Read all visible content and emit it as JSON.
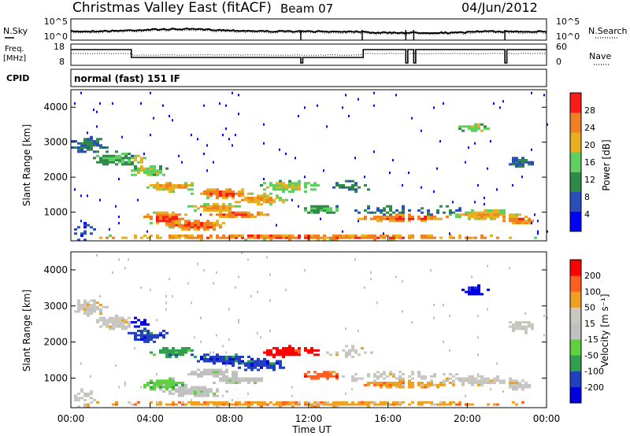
{
  "header": {
    "title": "Christmas Valley East (fitACF)",
    "beam": "Beam 07",
    "date": "04/Jun/2012"
  },
  "colors": {
    "sky_line": "#000000",
    "freq_line": "#000000"
  },
  "nsky_panel": {
    "left_label": "N.Sky",
    "right_label": "N.Search",
    "left_ticks": [
      "10^5",
      "10^0"
    ],
    "right_ticks": [
      "10^5",
      "10^0"
    ]
  },
  "freq_panel": {
    "left_label_1": "Freq.",
    "left_label_2": "[MHz]",
    "right_label": "Nave",
    "left_ticks": [
      "18",
      "8"
    ],
    "right_ticks": [
      "60",
      "0"
    ]
  },
  "cpid_panel": {
    "label": "CPID",
    "mode": "normal (fast) 151 IF"
  },
  "chart_data": [
    {
      "type": "heatmap",
      "quantity": "power",
      "ylabel": "Slant Range [km]",
      "ylim": [
        180,
        4500
      ],
      "y_ticks": [
        1000,
        2000,
        3000,
        4000
      ],
      "xlim_hours": [
        0,
        24
      ],
      "colorbar_label": "Power [dB]",
      "colorbar_ticks": [
        "28",
        "24",
        "20",
        "16",
        "12",
        "8",
        "4"
      ],
      "colorbar_colors": [
        "#0000ff",
        "#2a4fb8",
        "#2f8a4a",
        "#5fd05f",
        "#e8b020",
        "#f08020",
        "#ff1a1a"
      ]
    },
    {
      "type": "heatmap",
      "quantity": "velocity",
      "ylabel": "Slant Range [km]",
      "ylim": [
        180,
        4500
      ],
      "y_ticks": [
        1000,
        2000,
        3000,
        4000
      ],
      "xlim_hours": [
        0,
        24
      ],
      "xlabel": "Time UT",
      "x_ticks": [
        "00:00",
        "04:00",
        "08:00",
        "12:00",
        "16:00",
        "20:00",
        "00:00"
      ],
      "colorbar_label": "Velocity [m s⁻¹]",
      "colorbar_ticks": [
        "200",
        "100",
        "50",
        "15",
        "-15",
        "-50",
        "-100",
        "-200"
      ],
      "colorbar_colors": [
        "#ff0000",
        "#ff6020",
        "#f0a020",
        "#c8c8c0",
        "#c0c0c0",
        "#60d040",
        "#30a050",
        "#2040c0",
        "#0000e0"
      ]
    }
  ]
}
